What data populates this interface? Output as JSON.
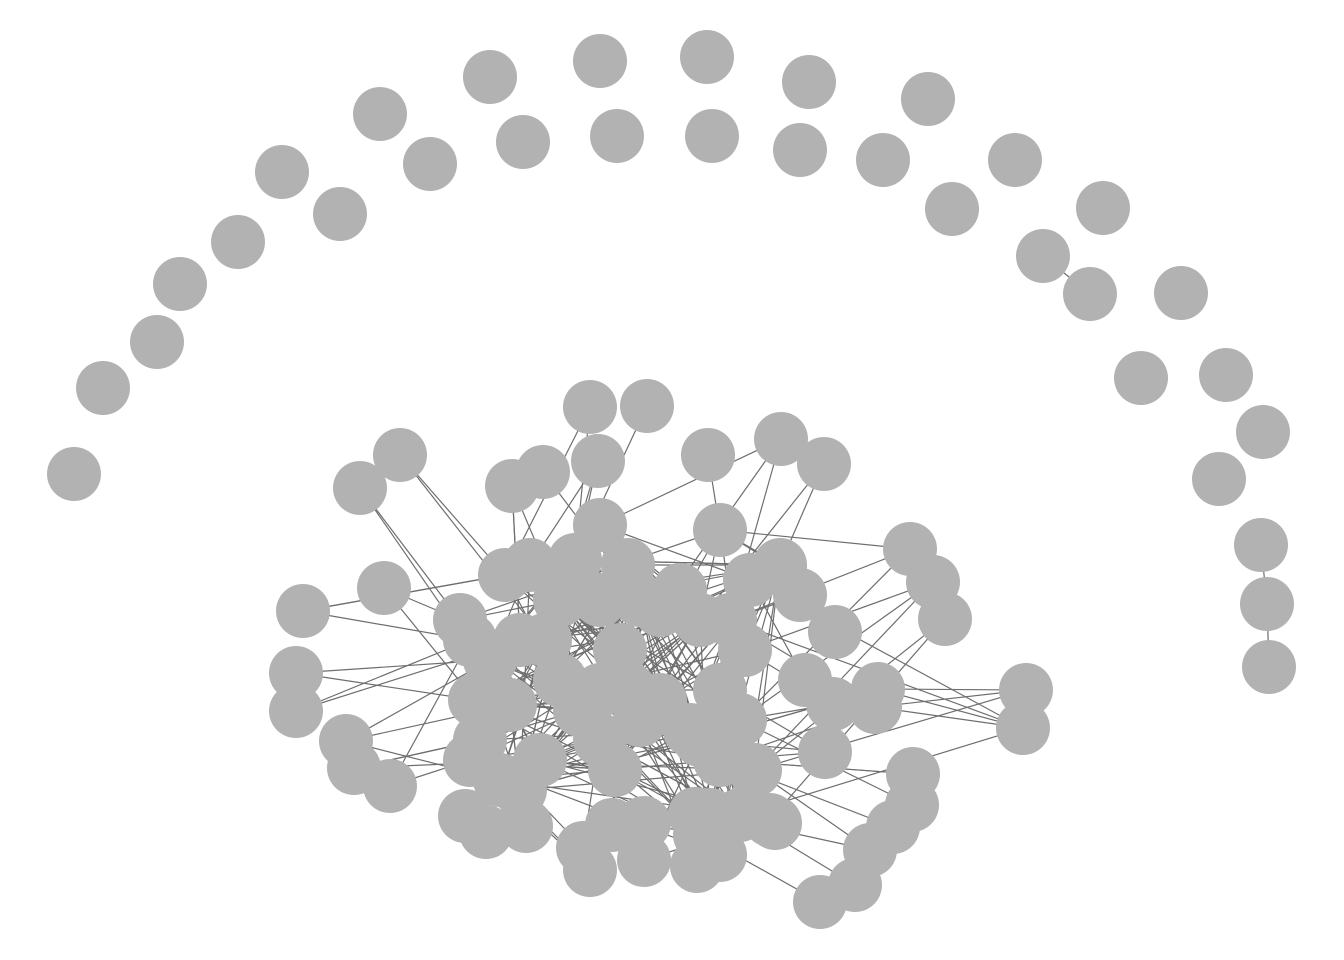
{
  "graph": {
    "node_color": "#b2b2b2",
    "edge_color": "#6e6e6e",
    "background": "#ffffff",
    "isolated_node_count": 36,
    "connected_component_node_count": 109
  }
}
